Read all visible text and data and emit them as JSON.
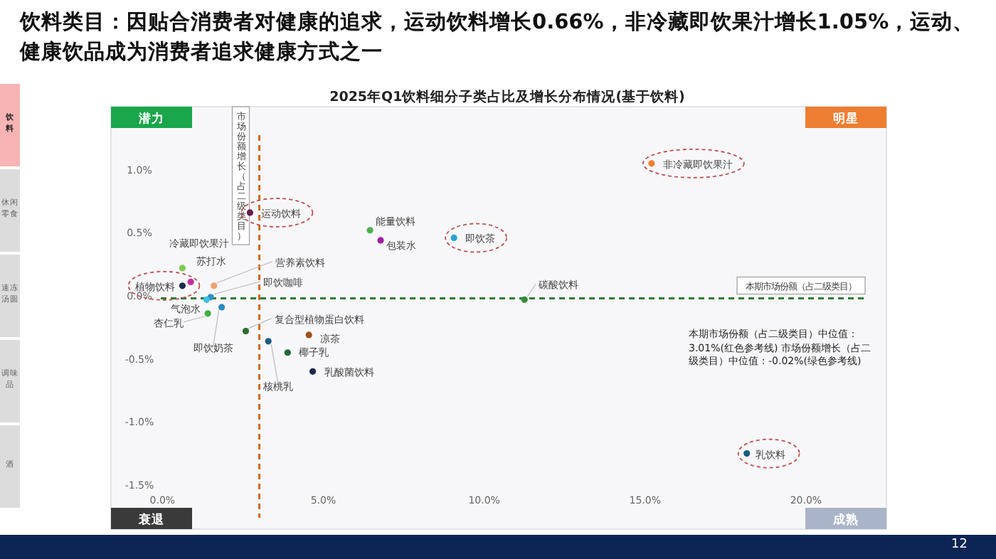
{
  "chart_data": {
    "type": "scatter",
    "title": "饮料类目：因贴合消费者对健康的追求，运动饮料增长0.66%，非冷藏即饮果汁增长1.05%，运动、健康饮品成为消费者追求健康方式之一",
    "subtitle": "2025年Q1饮料细分子类占比及增长分布情况(基于饮料)",
    "series": [
      {
        "name": "运动饮料",
        "color": "#6a1b4d",
        "x": [
          2.72
        ],
        "values": [
          0.66
        ]
      },
      {
        "name": "能量饮料",
        "color": "#4caf50",
        "x": [
          6.45
        ],
        "values": [
          0.52
        ]
      },
      {
        "name": "包装水",
        "color": "#a020a0",
        "x": [
          6.78
        ],
        "values": [
          0.44
        ]
      },
      {
        "name": "即饮茶",
        "color": "#29a3d6",
        "x": [
          9.06
        ],
        "values": [
          0.46
        ]
      },
      {
        "name": "非冷藏即饮果汁",
        "color": "#f08030",
        "x": [
          15.2
        ],
        "values": [
          1.05
        ]
      },
      {
        "name": "冷藏即饮果汁",
        "color": "#7ec850",
        "x": [
          0.62
        ],
        "values": [
          0.22
        ]
      },
      {
        "name": "苏打水",
        "color": "#c030a0",
        "x": [
          0.88
        ],
        "values": [
          0.11
        ]
      },
      {
        "name": "植物饮料",
        "color": "#1a2a50",
        "x": [
          0.62
        ],
        "values": [
          0.08
        ]
      },
      {
        "name": "营养素饮料",
        "color": "#f0a070",
        "x": [
          1.6
        ],
        "values": [
          0.08
        ]
      },
      {
        "name": "即饮咖啡",
        "color": "#3090c0",
        "x": [
          1.5
        ],
        "values": [
          -0.01
        ]
      },
      {
        "name": "气泡水",
        "color": "#40c0e0",
        "x": [
          1.37
        ],
        "values": [
          -0.03
        ]
      },
      {
        "name": "杏仁乳",
        "color": "#40b040",
        "x": [
          1.41
        ],
        "values": [
          -0.14
        ]
      },
      {
        "name": "即饮奶茶",
        "color": "#2a8ac0",
        "x": [
          1.84
        ],
        "values": [
          -0.09
        ]
      },
      {
        "name": "复合型植物蛋白饮料",
        "color": "#2e6b2e",
        "x": [
          2.59
        ],
        "values": [
          -0.28
        ]
      },
      {
        "name": "凉茶",
        "color": "#a0501a",
        "x": [
          4.55
        ],
        "values": [
          -0.31
        ]
      },
      {
        "name": "核桃乳",
        "color": "#1a6080",
        "x": [
          3.29
        ],
        "values": [
          -0.36
        ]
      },
      {
        "name": "椰子乳",
        "color": "#1e6b30",
        "x": [
          3.89
        ],
        "values": [
          -0.45
        ]
      },
      {
        "name": "乳酸菌饮料",
        "color": "#1a2a50",
        "x": [
          4.67
        ],
        "values": [
          -0.6
        ]
      },
      {
        "name": "碳酸饮料",
        "color": "#3a8a3a",
        "x": [
          11.25
        ],
        "values": [
          -0.03
        ]
      },
      {
        "name": "乳饮料",
        "color": "#1a5a80",
        "x": [
          18.16
        ],
        "values": [
          -1.25
        ]
      }
    ],
    "marker": "circle",
    "grid": false,
    "legend": false,
    "xlim": [
      -1.6,
      22.5
    ],
    "ylim": [
      -1.85,
      1.5
    ],
    "xticks": [
      {
        "value": 0,
        "label": "0.0%"
      },
      {
        "value": 5,
        "label": "5.0%"
      },
      {
        "value": 10,
        "label": "10.0%"
      },
      {
        "value": 15,
        "label": "15.0%"
      },
      {
        "value": 20,
        "label": "20.0%"
      }
    ],
    "yticks": [
      {
        "value": -1.5,
        "label": "-1.5%"
      },
      {
        "value": -1,
        "label": "-1.0%"
      },
      {
        "value": -0.5,
        "label": "-0.5%"
      },
      {
        "value": 0,
        "label": "0.0%"
      },
      {
        "value": 0.5,
        "label": "0.5%"
      },
      {
        "value": 1,
        "label": "1.0%"
      }
    ],
    "ref_lines": [
      {
        "axis": "x",
        "value": 3.01,
        "label": "市场份额增长（占二级类目）",
        "color": "#d2691e",
        "line_style": "dashed"
      },
      {
        "axis": "y",
        "value": -0.02,
        "label": "本期市场份额（占二级类目）",
        "color": "#2e7d32",
        "line_style": "dashed"
      }
    ],
    "annotations": [
      "潜力",
      "明星",
      "衰退",
      "成熟",
      "饮料",
      "休闲零食",
      "速冻汤圆",
      "调味品",
      "酒",
      "本期市场份额（占二级类目）中位值：3.01%(红色参考线) 市场份额增长（占二级类目）中位值：-0.02%(绿色参考线)",
      "12"
    ]
  }
}
